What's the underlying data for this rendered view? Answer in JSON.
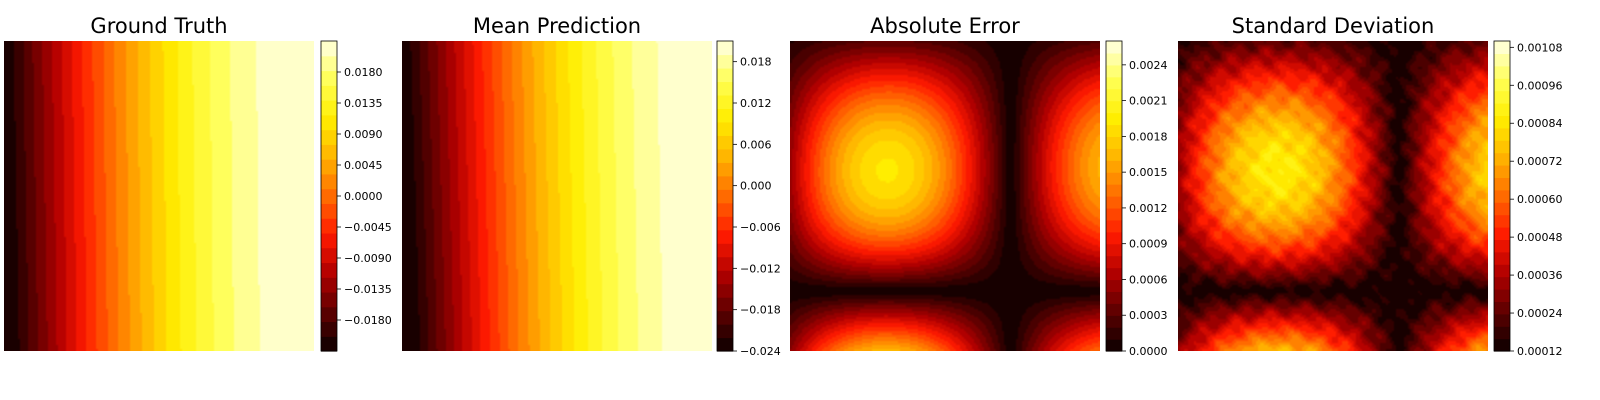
{
  "figure": {
    "colormap": "hot",
    "colormap_stops": [
      "#0b0000",
      "#5c0000",
      "#b00000",
      "#ff1a00",
      "#ff6a00",
      "#ffb300",
      "#ffee00",
      "#ffff55",
      "#ffffe6"
    ]
  },
  "chart_data": [
    {
      "type": "heatmap",
      "title": "Ground Truth",
      "field": "field_gt",
      "levels": 21,
      "value_range": [
        -0.0225,
        0.0225
      ],
      "colorbar": {
        "range": [
          -0.0225,
          0.0225
        ],
        "ticks": [
          -0.018,
          -0.0135,
          -0.009,
          -0.0045,
          0.0,
          0.0045,
          0.009,
          0.0135,
          0.018
        ],
        "tick_labels": [
          "−0.0180",
          "−0.0135",
          "−0.0090",
          "−0.0045",
          "0.0000",
          "0.0045",
          "0.0090",
          "0.0135",
          "0.0180"
        ]
      }
    },
    {
      "type": "heatmap",
      "title": "Mean Prediction",
      "field": "field_mean",
      "levels": 23,
      "value_range": [
        -0.024,
        0.021
      ],
      "colorbar": {
        "range": [
          -0.024,
          0.021
        ],
        "ticks": [
          -0.024,
          -0.018,
          -0.012,
          -0.006,
          0.0,
          0.006,
          0.012,
          0.018
        ],
        "tick_labels": [
          "−0.024",
          "−0.018",
          "−0.012",
          "−0.006",
          "0.000",
          "0.006",
          "0.012",
          "0.018"
        ]
      }
    },
    {
      "type": "heatmap",
      "title": "Absolute Error",
      "field": "field_abs_error",
      "levels": 26,
      "value_range": [
        0.0,
        0.0026
      ],
      "colorbar": {
        "range": [
          0.0,
          0.0026
        ],
        "ticks": [
          0.0,
          0.0003,
          0.0006,
          0.0009,
          0.0012,
          0.0015,
          0.0018,
          0.0021,
          0.0024
        ],
        "tick_labels": [
          "0.0000",
          "0.0003",
          "0.0006",
          "0.0009",
          "0.0012",
          "0.0015",
          "0.0018",
          "0.0021",
          "0.0024"
        ]
      }
    },
    {
      "type": "heatmap",
      "title": "Standard Deviation",
      "field": "field_std",
      "levels": 25,
      "value_range": [
        0.00012,
        0.0011
      ],
      "colorbar": {
        "range": [
          0.00012,
          0.0011
        ],
        "ticks": [
          0.00012,
          0.00024,
          0.00036,
          0.00048,
          0.0006,
          0.00072,
          0.00084,
          0.00096,
          0.00108
        ],
        "tick_labels": [
          "0.00012",
          "0.00024",
          "0.00036",
          "0.00048",
          "0.00060",
          "0.00072",
          "0.00084",
          "0.00096",
          "0.00108"
        ]
      }
    }
  ]
}
